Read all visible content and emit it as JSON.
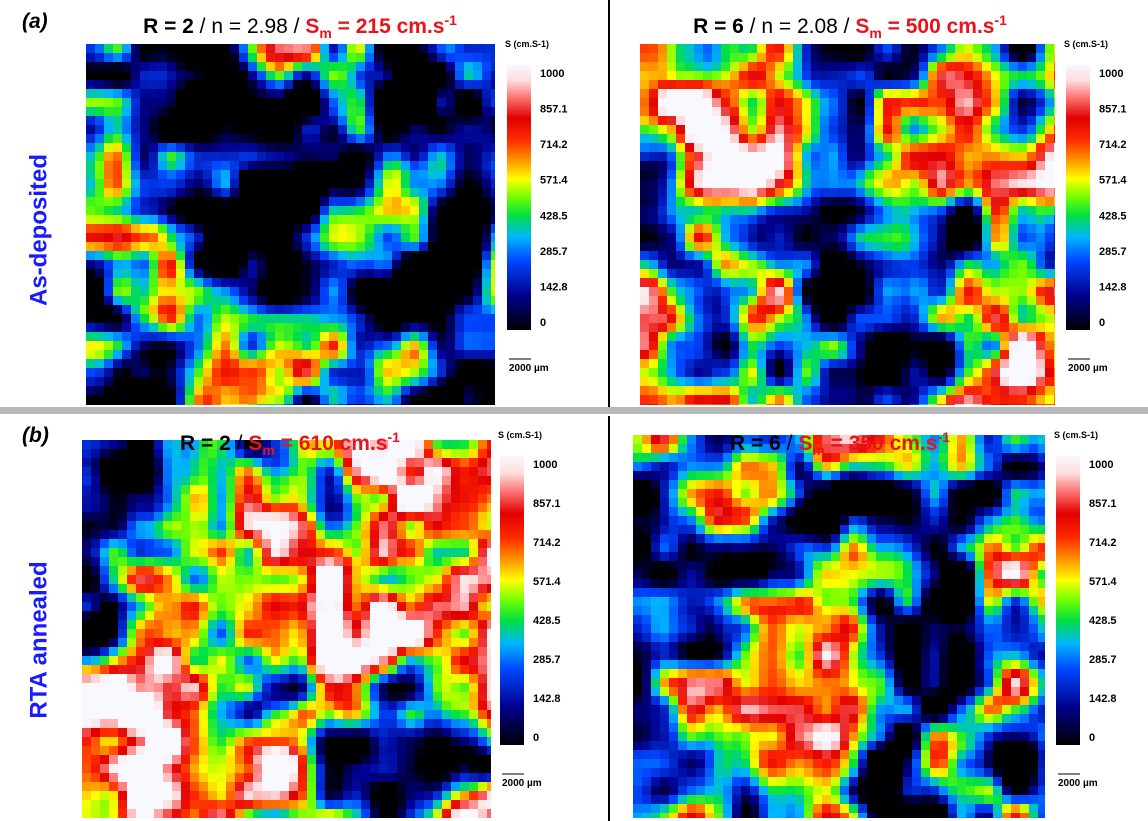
{
  "row_labels": [
    {
      "tag": "(a)",
      "label": "As-deposited"
    },
    {
      "tag": "(b)",
      "label": "RTA annealed"
    }
  ],
  "colorbar": {
    "title": "S (cm.S-1)",
    "ticks": [
      1000,
      857.1,
      714.2,
      571.4,
      428.5,
      285.7,
      142.8,
      0
    ],
    "scale_label": "2000 µm"
  },
  "panels": [
    {
      "title": {
        "r": "R = 2",
        "sep": " / n = 2.98 / ",
        "s": "S",
        "sub": "m",
        "val": " = 215 cm.s",
        "sup": "-1"
      }
    },
    {
      "title": {
        "r": "R = 6",
        "sep": " / n = 2.08 / ",
        "s": "S",
        "sub": "m",
        "val": " = 500 cm.s",
        "sup": "-1"
      }
    },
    {
      "title": {
        "r": "R = 2",
        "sep": " / ",
        "s": "S",
        "sub": "m",
        "val": " = 610 cm.s",
        "sup": "-1"
      }
    },
    {
      "title": {
        "r": "R = 6",
        "sep": " / ",
        "s": "S",
        "sub": "m",
        "val": " = 350 cm.s",
        "sup": "-1"
      }
    }
  ]
}
